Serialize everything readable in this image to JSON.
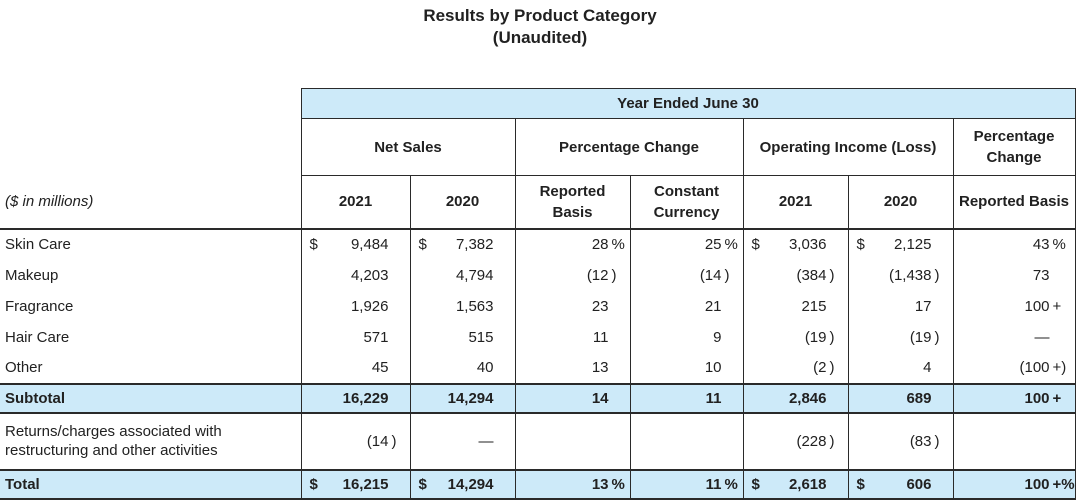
{
  "title": {
    "line1": "Results by Product Category",
    "line2": "(Unaudited)"
  },
  "colors": {
    "highlight_blue": "#cdeaf9",
    "border": "#2a2a2a",
    "text": "#212121"
  },
  "table": {
    "span_header": "Year Ended June 30",
    "col_caption": "($ in millions)",
    "groups": [
      {
        "label": "Net Sales"
      },
      {
        "label": "Percentage Change"
      },
      {
        "label": "Operating Income (Loss)"
      },
      {
        "label": "Percentage Change"
      }
    ],
    "subheaders": [
      "2021",
      "2020",
      "Reported Basis",
      "Constant Currency",
      "2021",
      "2020",
      "Reported Basis"
    ],
    "rows": [
      {
        "kind": "data",
        "label": "Skin Care",
        "cells": [
          {
            "d": "$",
            "v": "9,484"
          },
          {
            "d": "$",
            "v": "7,382"
          },
          {
            "v": "28",
            "s": "%"
          },
          {
            "v": "25",
            "s": "%"
          },
          {
            "d": "$",
            "v": "3,036"
          },
          {
            "d": "$",
            "v": "2,125"
          },
          {
            "v": "43",
            "s": "%"
          }
        ]
      },
      {
        "kind": "data",
        "label": "Makeup",
        "cells": [
          {
            "v": "4,203"
          },
          {
            "v": "4,794"
          },
          {
            "v": "(12",
            "s": ")"
          },
          {
            "v": "(14",
            "s": ")"
          },
          {
            "v": "(384",
            "s": ")"
          },
          {
            "v": "(1,438",
            "s": ")"
          },
          {
            "v": "73"
          }
        ]
      },
      {
        "kind": "data",
        "label": "Fragrance",
        "cells": [
          {
            "v": "1,926"
          },
          {
            "v": "1,563"
          },
          {
            "v": "23"
          },
          {
            "v": "21"
          },
          {
            "v": "215"
          },
          {
            "v": "17"
          },
          {
            "v": "100",
            "s": "+"
          }
        ]
      },
      {
        "kind": "data",
        "label": "Hair Care",
        "cells": [
          {
            "v": "571"
          },
          {
            "v": "515"
          },
          {
            "v": "11"
          },
          {
            "v": "9"
          },
          {
            "v": "(19",
            "s": ")"
          },
          {
            "v": "(19",
            "s": ")"
          },
          {
            "v": "—"
          }
        ]
      },
      {
        "kind": "data",
        "label": "Other",
        "cells": [
          {
            "v": "45"
          },
          {
            "v": "40"
          },
          {
            "v": "13"
          },
          {
            "v": "10"
          },
          {
            "v": "(2",
            "s": ")"
          },
          {
            "v": "4"
          },
          {
            "v": "(100",
            "s": "+)"
          }
        ]
      },
      {
        "kind": "subtotal",
        "label": "Subtotal",
        "cells": [
          {
            "v": "16,229"
          },
          {
            "v": "14,294"
          },
          {
            "v": "14"
          },
          {
            "v": "11"
          },
          {
            "v": "2,846"
          },
          {
            "v": "689"
          },
          {
            "v": "100",
            "s": "+"
          }
        ]
      },
      {
        "kind": "returns",
        "label": "Returns/charges associated with restructuring and other activities",
        "cells": [
          {
            "v": "(14",
            "s": ")"
          },
          {
            "v": "—"
          },
          {},
          {},
          {
            "v": "(228",
            "s": ")"
          },
          {
            "v": "(83",
            "s": ")"
          },
          {}
        ]
      },
      {
        "kind": "total",
        "label": "Total",
        "cells": [
          {
            "d": "$",
            "v": "16,215"
          },
          {
            "d": "$",
            "v": "14,294"
          },
          {
            "v": "13",
            "s": "%"
          },
          {
            "v": "11",
            "s": "%"
          },
          {
            "d": "$",
            "v": "2,618"
          },
          {
            "d": "$",
            "v": "606"
          },
          {
            "v": "100",
            "s": "+%"
          }
        ]
      }
    ]
  }
}
